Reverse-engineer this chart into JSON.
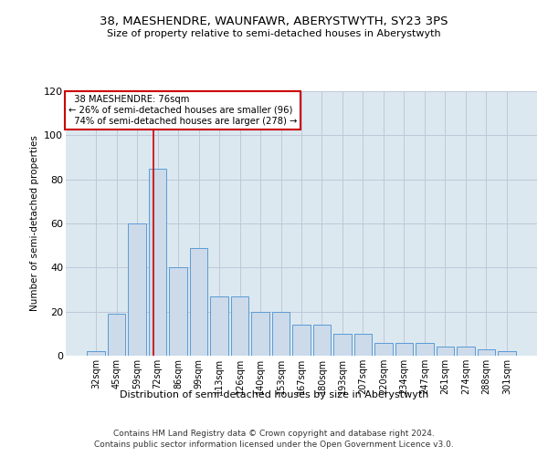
{
  "title": "38, MAESHENDRE, WAUNFAWR, ABERYSTWYTH, SY23 3PS",
  "subtitle": "Size of property relative to semi-detached houses in Aberystwyth",
  "xlabel": "Distribution of semi-detached houses by size in Aberystwyth",
  "ylabel": "Number of semi-detached properties",
  "categories": [
    "32sqm",
    "45sqm",
    "59sqm",
    "72sqm",
    "86sqm",
    "99sqm",
    "113sqm",
    "126sqm",
    "140sqm",
    "153sqm",
    "167sqm",
    "180sqm",
    "193sqm",
    "207sqm",
    "220sqm",
    "234sqm",
    "247sqm",
    "261sqm",
    "274sqm",
    "288sqm",
    "301sqm"
  ],
  "values": [
    2,
    19,
    60,
    85,
    40,
    49,
    27,
    27,
    20,
    20,
    14,
    14,
    10,
    10,
    6,
    6,
    6,
    4,
    4,
    3,
    2
  ],
  "bar_color": "#ccdaea",
  "bar_edge_color": "#5b9bd5",
  "marker_label": "38 MAESHENDRE: 76sqm",
  "smaller_pct": "26%",
  "smaller_n": 96,
  "larger_pct": "74%",
  "larger_n": 278,
  "annotation_box_color": "#ffffff",
  "annotation_border_color": "#cc0000",
  "marker_line_color": "#cc0000",
  "marker_bin_index": 3,
  "ylim": [
    0,
    120
  ],
  "yticks": [
    0,
    20,
    40,
    60,
    80,
    100,
    120
  ],
  "grid_color": "#c0c8d8",
  "bg_color": "#dce8f0",
  "footer1": "Contains HM Land Registry data © Crown copyright and database right 2024.",
  "footer2": "Contains public sector information licensed under the Open Government Licence v3.0."
}
